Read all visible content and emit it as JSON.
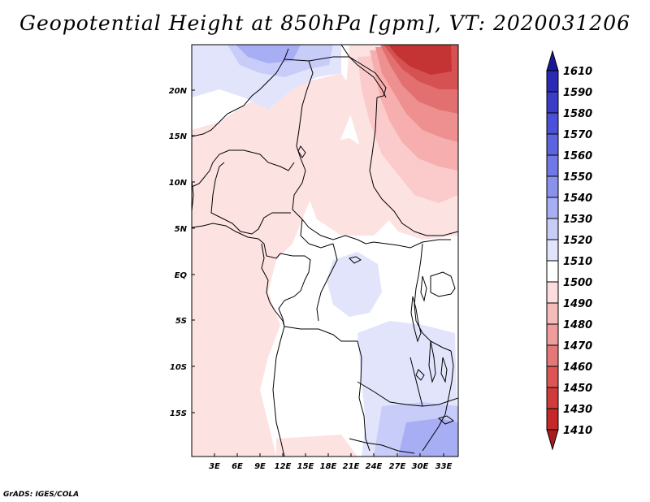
{
  "title": "Geopotential Height at 850hPa [gpm], VT: 2020031206",
  "credit": "GrADS: IGES/COLA",
  "y_ticks": [
    "20N",
    "15N",
    "10N",
    "5N",
    "EQ",
    "5S",
    "10S",
    "15S"
  ],
  "x_ticks": [
    "3E",
    "6E",
    "9E",
    "12E",
    "15E",
    "18E",
    "21E",
    "24E",
    "27E",
    "30E",
    "33E"
  ],
  "colorbar": {
    "labels": [
      "1610",
      "1590",
      "1580",
      "1570",
      "1560",
      "1550",
      "1540",
      "1530",
      "1520",
      "1510",
      "1500",
      "1490",
      "1480",
      "1470",
      "1460",
      "1450",
      "1430",
      "1410"
    ],
    "colors": [
      "#1a1896",
      "#2a2ab4",
      "#3a3cc8",
      "#4a50d8",
      "#5c64e0",
      "#7078e6",
      "#8a92ee",
      "#a8aef4",
      "#c8ccf8",
      "#e2e4fc",
      "#ffffff",
      "#fcdcdc",
      "#f6bcbc",
      "#ee9c9c",
      "#e47878",
      "#dc5656",
      "#d03c3c",
      "#c42828",
      "#aa1c1c"
    ]
  }
}
